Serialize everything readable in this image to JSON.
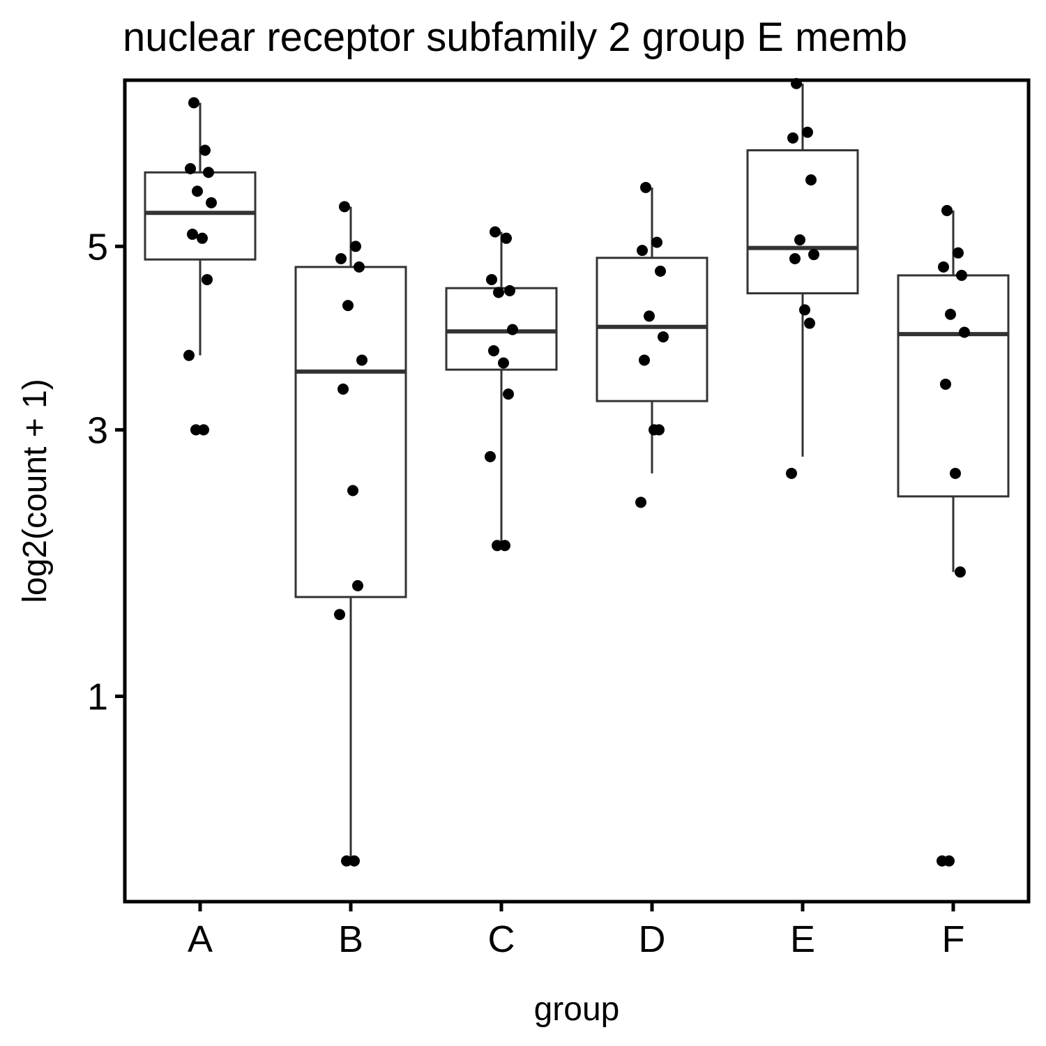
{
  "chart_data": {
    "type": "box",
    "title": "nuclear receptor subfamily 2 group E memb",
    "xlabel": "group",
    "ylabel": "log2(count + 1)",
    "y_scale": "sqrt",
    "ylim": [
      0.19,
      7.25
    ],
    "y_ticks": [
      1,
      3,
      5
    ],
    "grid": false,
    "categories": [
      "A",
      "B",
      "C",
      "D",
      "E",
      "F"
    ],
    "boxes": [
      {
        "category": "A",
        "lower_whisker": 3.75,
        "q1": 4.84,
        "median": 5.42,
        "q3": 5.95,
        "upper_whisker": 6.92
      },
      {
        "category": "B",
        "lower_whisker": 0.3,
        "q1": 1.62,
        "median": 3.58,
        "q3": 4.75,
        "upper_whisker": 5.5
      },
      {
        "category": "C",
        "lower_whisker": 2.0,
        "q1": 3.6,
        "median": 4.01,
        "q3": 4.5,
        "upper_whisker": 5.18
      },
      {
        "category": "D",
        "lower_whisker": 2.6,
        "q1": 3.28,
        "median": 4.06,
        "q3": 4.86,
        "upper_whisker": 5.75
      },
      {
        "category": "E",
        "lower_whisker": 2.75,
        "q1": 4.44,
        "median": 4.98,
        "q3": 6.25,
        "upper_whisker": 7.2
      },
      {
        "category": "F",
        "lower_whisker": 1.8,
        "q1": 2.4,
        "median": 3.98,
        "q3": 4.65,
        "upper_whisker": 5.45
      }
    ],
    "points": [
      {
        "category": "A",
        "values": [
          6.92,
          6.25,
          6.0,
          5.95,
          5.7,
          5.55,
          5.15,
          5.1,
          4.6,
          3.75,
          3.0,
          3.0
        ]
      },
      {
        "category": "B",
        "values": [
          5.5,
          5.0,
          4.85,
          4.75,
          4.3,
          3.7,
          3.4,
          2.45,
          1.7,
          1.5,
          0.3,
          0.3
        ]
      },
      {
        "category": "C",
        "values": [
          5.18,
          5.1,
          4.6,
          4.47,
          4.45,
          4.03,
          3.8,
          3.67,
          3.35,
          2.75,
          2.0,
          2.0
        ]
      },
      {
        "category": "D",
        "values": [
          5.75,
          5.05,
          4.95,
          4.7,
          4.18,
          3.95,
          3.7,
          3.0,
          3.0,
          2.35
        ]
      },
      {
        "category": "E",
        "values": [
          7.2,
          6.5,
          6.42,
          5.85,
          5.08,
          4.9,
          4.85,
          4.25,
          4.1,
          2.6
        ]
      },
      {
        "category": "F",
        "values": [
          5.45,
          4.92,
          4.75,
          4.65,
          4.2,
          4.0,
          3.45,
          2.6,
          1.8,
          0.3,
          0.3
        ]
      }
    ]
  }
}
